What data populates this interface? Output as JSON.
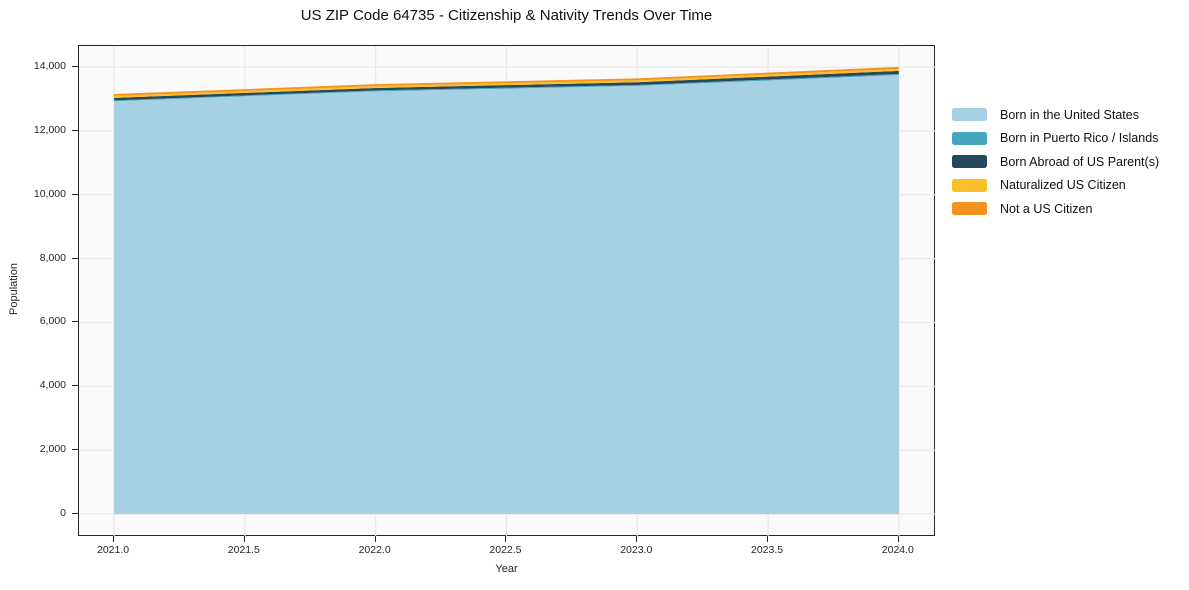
{
  "chart_data": {
    "type": "area",
    "stacked": true,
    "title": "US ZIP Code 64735 - Citizenship & Nativity Trends Over Time",
    "xlabel": "Year",
    "ylabel": "Population",
    "x": [
      2021,
      2022,
      2023,
      2024
    ],
    "series": [
      {
        "name": "Born in the United States",
        "color": "#a6d0e4",
        "values": [
          12930,
          13240,
          13410,
          13750
        ]
      },
      {
        "name": "Born in Puerto Rico / Islands",
        "color": "#45a6bd",
        "values": [
          25,
          30,
          30,
          35
        ]
      },
      {
        "name": "Born Abroad of US Parent(s)",
        "color": "#26485c",
        "values": [
          80,
          75,
          85,
          95
        ]
      },
      {
        "name": "Naturalized US Citizen",
        "color": "#fcbf2c",
        "values": [
          60,
          60,
          60,
          65
        ]
      },
      {
        "name": "Not a US Citizen",
        "color": "#f6921f",
        "values": [
          60,
          60,
          60,
          60
        ]
      }
    ],
    "xticks": [
      2021.0,
      2021.5,
      2022.0,
      2022.5,
      2023.0,
      2023.5,
      2024.0
    ],
    "xtick_labels": [
      "2021.0",
      "2021.5",
      "2022.0",
      "2022.5",
      "2023.0",
      "2023.5",
      "2024.0"
    ],
    "yticks": [
      0,
      2000,
      4000,
      6000,
      8000,
      10000,
      12000,
      14000
    ],
    "ytick_labels": [
      "0",
      "2,000",
      "4,000",
      "6,000",
      "8,000",
      "10,000",
      "12,000",
      "14,000"
    ],
    "xlim": [
      2020.866,
      2024.142
    ],
    "ylim": [
      -720,
      14660
    ],
    "grid": true,
    "legend_position": "right"
  }
}
